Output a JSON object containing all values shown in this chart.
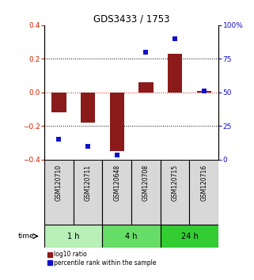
{
  "title": "GDS3433 / 1753",
  "samples": [
    "GSM120710",
    "GSM120711",
    "GSM120648",
    "GSM120708",
    "GSM120715",
    "GSM120716"
  ],
  "log10_ratio": [
    -0.12,
    -0.18,
    -0.35,
    0.06,
    0.23,
    0.01
  ],
  "percentile_rank": [
    15,
    10,
    3,
    80,
    90,
    51
  ],
  "time_groups": [
    {
      "label": "1 h",
      "start": 0,
      "end": 1,
      "color": "#b8f0b8"
    },
    {
      "label": "4 h",
      "start": 2,
      "end": 3,
      "color": "#66dd66"
    },
    {
      "label": "24 h",
      "start": 4,
      "end": 5,
      "color": "#33cc33"
    }
  ],
  "bar_color": "#8B1A1A",
  "dot_color": "#1111CC",
  "ylim_left": [
    -0.4,
    0.4
  ],
  "ylim_right": [
    0,
    100
  ],
  "yticks_left": [
    -0.4,
    -0.2,
    0.0,
    0.2,
    0.4
  ],
  "yticks_right": [
    0,
    25,
    50,
    75,
    100
  ],
  "ytick_labels_right": [
    "0",
    "25",
    "50",
    "75",
    "100%"
  ],
  "background_color": "#ffffff",
  "panel_bg": "#d8d8d8"
}
